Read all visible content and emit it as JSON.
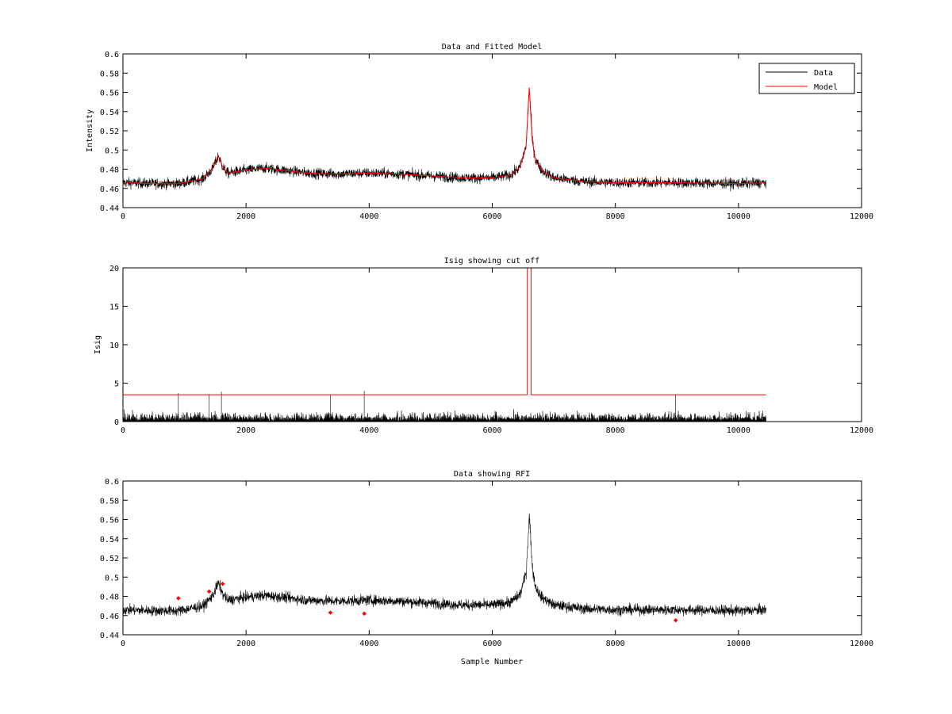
{
  "figure": {
    "background": "#ffffff"
  },
  "colors": {
    "data": "#000000",
    "model": "#ff0000",
    "threshold": "#ff0000",
    "rfi": "#ff0000"
  },
  "chart_data": [
    {
      "type": "line",
      "title": "Data and Fitted Model",
      "xlabel": "",
      "ylabel": "Intensity",
      "xlim": [
        0,
        12000
      ],
      "ylim": [
        0.44,
        0.6
      ],
      "xticks": [
        0,
        2000,
        4000,
        6000,
        8000,
        10000,
        12000
      ],
      "yticks": [
        0.44,
        0.46,
        0.48,
        0.5,
        0.52,
        0.54,
        0.56,
        0.58,
        0.6
      ],
      "xtick_labels": [
        "0",
        "2000",
        "4000",
        "6000",
        "8000",
        "10000",
        "12000"
      ],
      "ytick_labels": [
        "0.44",
        "0.46",
        "0.48",
        "0.5",
        "0.52",
        "0.54",
        "0.56",
        "0.58",
        "0.6"
      ],
      "grid": false,
      "legend": {
        "placement": "top-right",
        "entries": [
          "Data",
          "Model"
        ]
      },
      "series": [
        {
          "name": "Data",
          "kind": "noisy",
          "noise": 0.006,
          "x": [
            0,
            500,
            900,
            1300,
            1450,
            1550,
            1620,
            1700,
            1800,
            2000,
            2300,
            2600,
            3000,
            3500,
            4000,
            4500,
            5000,
            5500,
            6000,
            6300,
            6450,
            6550,
            6600,
            6650,
            6700,
            6800,
            7000,
            7500,
            8000,
            9000,
            10000,
            10450
          ],
          "y": [
            0.466,
            0.465,
            0.465,
            0.47,
            0.48,
            0.494,
            0.482,
            0.476,
            0.477,
            0.479,
            0.481,
            0.479,
            0.476,
            0.475,
            0.476,
            0.475,
            0.473,
            0.471,
            0.471,
            0.474,
            0.482,
            0.505,
            0.565,
            0.51,
            0.49,
            0.479,
            0.471,
            0.467,
            0.466,
            0.466,
            0.465,
            0.466
          ]
        },
        {
          "name": "Model",
          "kind": "line",
          "x": [
            0,
            500,
            900,
            1300,
            1450,
            1550,
            1620,
            1700,
            1800,
            2000,
            2300,
            2600,
            3000,
            3500,
            4000,
            4500,
            5000,
            5500,
            6000,
            6300,
            6450,
            6550,
            6600,
            6650,
            6700,
            6800,
            7000,
            7500,
            8000,
            9000,
            10000,
            10450
          ],
          "y": [
            0.466,
            0.465,
            0.465,
            0.47,
            0.48,
            0.494,
            0.482,
            0.476,
            0.477,
            0.479,
            0.481,
            0.479,
            0.476,
            0.475,
            0.476,
            0.475,
            0.473,
            0.471,
            0.471,
            0.474,
            0.482,
            0.505,
            0.565,
            0.51,
            0.49,
            0.479,
            0.471,
            0.467,
            0.466,
            0.466,
            0.465,
            0.466
          ]
        }
      ]
    },
    {
      "type": "line",
      "title": "Isig showing cut off",
      "xlabel": "",
      "ylabel": "Isig",
      "xlim": [
        0,
        12000
      ],
      "ylim": [
        0,
        20
      ],
      "xticks": [
        0,
        2000,
        4000,
        6000,
        8000,
        10000,
        12000
      ],
      "yticks": [
        0,
        5,
        10,
        15,
        20
      ],
      "xtick_labels": [
        "0",
        "2000",
        "4000",
        "6000",
        "8000",
        "10000",
        "12000"
      ],
      "ytick_labels": [
        "0",
        "5",
        "10",
        "15",
        "20"
      ],
      "grid": false,
      "series": [
        {
          "kind": "isig",
          "x_range": [
            0,
            10450
          ],
          "amplitude": 1.6,
          "spikes": [
            [
              900,
              3.7
            ],
            [
              1400,
              3.6
            ],
            [
              1600,
              3.9
            ],
            [
              3370,
              3.5
            ],
            [
              3920,
              4.0
            ],
            [
              8980,
              3.5
            ]
          ]
        },
        {
          "kind": "line",
          "x": [
            0,
            6570,
            6570,
            6630,
            6630,
            10450
          ],
          "y": [
            3.5,
            3.5,
            20,
            20,
            3.5,
            3.5
          ]
        }
      ]
    },
    {
      "type": "scatter",
      "title": "Data showing RFI",
      "xlabel": "Sample Number",
      "ylabel": "",
      "xlim": [
        0,
        12000
      ],
      "ylim": [
        0.44,
        0.6
      ],
      "xticks": [
        0,
        2000,
        4000,
        6000,
        8000,
        10000,
        12000
      ],
      "yticks": [
        0.44,
        0.46,
        0.48,
        0.5,
        0.52,
        0.54,
        0.56,
        0.58,
        0.6
      ],
      "xtick_labels": [
        "0",
        "2000",
        "4000",
        "6000",
        "8000",
        "10000",
        "12000"
      ],
      "ytick_labels": [
        "0.44",
        "0.46",
        "0.48",
        "0.5",
        "0.52",
        "0.54",
        "0.56",
        "0.58",
        "0.6"
      ],
      "grid": false,
      "series": [
        {
          "kind": "noisy",
          "noise": 0.006,
          "x": [
            0,
            500,
            900,
            1300,
            1450,
            1550,
            1620,
            1700,
            1800,
            2000,
            2300,
            2600,
            3000,
            3500,
            4000,
            4500,
            5000,
            5500,
            6000,
            6300,
            6450,
            6550,
            6600,
            6650,
            6700,
            6800,
            7000,
            7500,
            8000,
            9000,
            10000,
            10450
          ],
          "y": [
            0.466,
            0.465,
            0.465,
            0.47,
            0.48,
            0.494,
            0.482,
            0.476,
            0.477,
            0.479,
            0.481,
            0.479,
            0.476,
            0.475,
            0.476,
            0.475,
            0.473,
            0.471,
            0.471,
            0.474,
            0.482,
            0.505,
            0.565,
            0.51,
            0.49,
            0.479,
            0.471,
            0.467,
            0.466,
            0.466,
            0.465,
            0.466
          ]
        },
        {
          "kind": "markers",
          "x": [
            900,
            1400,
            1620,
            3370,
            3920,
            8980
          ],
          "y": [
            0.478,
            0.485,
            0.493,
            0.463,
            0.462,
            0.455
          ]
        }
      ]
    }
  ]
}
